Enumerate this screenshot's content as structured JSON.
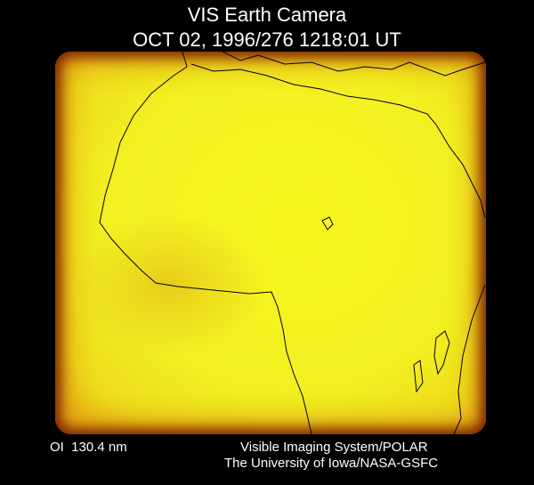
{
  "header": {
    "title": "VIS Earth Camera",
    "timestamp": "OCT 02, 1996/276 1218:01 UT"
  },
  "footer": {
    "filter": "OI  130.4 nm",
    "instrument": "Visible Imaging System/POLAR",
    "credit": "The University of Iowa/NASA-GSFC"
  }
}
